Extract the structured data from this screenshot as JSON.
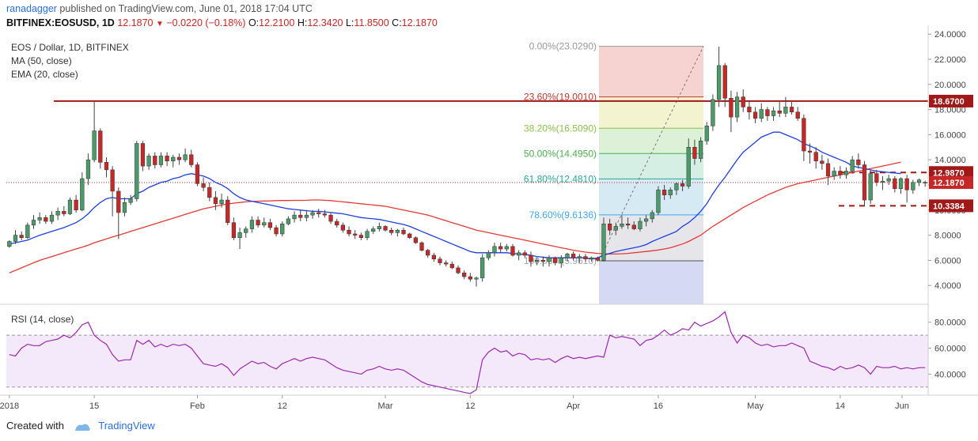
{
  "header": {
    "user": "ranadagger",
    "line1_rest": " published on TradingView.com, June 01, 2018 17:04 UTC",
    "symbol": "BITFINEX:EOSUSD, 1D",
    "last": "12.1870",
    "change_arrow": "▼",
    "change": "−0.0220 (−0.18%)",
    "o_label": "O:",
    "o": "12.2100",
    "h_label": "H:",
    "h": "12.3420",
    "l_label": "L:",
    "l": "11.8500",
    "c_label": "C:",
    "c": "12.1870"
  },
  "legend": {
    "title": "EOS / Dollar, 1D, BITFINEX",
    "ma": "MA (50, close)",
    "ema": "EMA (20, close)",
    "rsi": "RSI (14, close)"
  },
  "footer": {
    "created_with": "Created with",
    "brand": "TradingView"
  },
  "colors": {
    "up": "#4c9a6a",
    "down": "#c62828",
    "ma": "#e53935",
    "ema": "#1e3fe0",
    "rsi": "#9c27b0",
    "rsi_band": "#f3e9fa",
    "hline": "#a01818",
    "axis_text": "#444"
  },
  "chart_data": {
    "type": "candlestick",
    "x_tick_labels": [
      "2018",
      "15",
      "Feb",
      "12",
      "Mar",
      "12",
      "Apr",
      "16",
      "May",
      "14",
      "Jun"
    ],
    "y_tick_labels": [
      "24.0000",
      "22.0000",
      "20.0000",
      "18.0000",
      "16.0000",
      "14.0000",
      "12.0000",
      "10.0000",
      "8.0000",
      "6.0000",
      "4.0000"
    ],
    "y_range": [
      2.5,
      24.2
    ],
    "ohlc": [
      [
        7.1,
        7.6,
        7.0,
        7.5
      ],
      [
        7.5,
        8.4,
        7.3,
        8.0
      ],
      [
        8.0,
        8.3,
        7.6,
        7.8
      ],
      [
        7.8,
        9.0,
        7.7,
        8.8
      ],
      [
        8.8,
        9.6,
        8.5,
        9.2
      ],
      [
        9.2,
        9.8,
        8.9,
        9.4
      ],
      [
        9.4,
        9.6,
        8.9,
        9.1
      ],
      [
        9.1,
        9.9,
        8.9,
        9.6
      ],
      [
        9.6,
        10.2,
        9.2,
        9.9
      ],
      [
        9.9,
        10.3,
        9.5,
        9.7
      ],
      [
        9.7,
        11.0,
        9.6,
        10.8
      ],
      [
        10.8,
        11.2,
        9.8,
        10.0
      ],
      [
        10.0,
        13.0,
        9.9,
        12.5
      ],
      [
        12.5,
        14.5,
        12.0,
        14.0
      ],
      [
        14.0,
        18.6,
        13.8,
        16.3
      ],
      [
        16.3,
        16.5,
        13.3,
        13.8
      ],
      [
        13.8,
        14.2,
        12.6,
        13.2
      ],
      [
        13.2,
        13.5,
        9.5,
        11.5
      ],
      [
        11.5,
        11.8,
        7.7,
        9.8
      ],
      [
        9.8,
        11.0,
        9.5,
        10.6
      ],
      [
        10.6,
        11.2,
        10.4,
        10.9
      ],
      [
        10.9,
        15.5,
        10.7,
        15.3
      ],
      [
        15.3,
        15.5,
        13.1,
        13.5
      ],
      [
        13.5,
        14.5,
        13.2,
        14.3
      ],
      [
        14.3,
        14.6,
        13.3,
        13.6
      ],
      [
        13.6,
        14.6,
        13.4,
        14.3
      ],
      [
        14.3,
        14.6,
        13.5,
        13.9
      ],
      [
        13.9,
        14.4,
        13.4,
        14.2
      ],
      [
        14.2,
        14.5,
        13.6,
        14.0
      ],
      [
        14.0,
        14.9,
        13.8,
        14.4
      ],
      [
        14.4,
        14.8,
        13.4,
        13.6
      ],
      [
        13.6,
        13.8,
        11.9,
        12.1
      ],
      [
        12.1,
        12.6,
        11.5,
        11.8
      ],
      [
        11.8,
        12.2,
        10.7,
        11.0
      ],
      [
        11.0,
        11.5,
        10.0,
        10.5
      ],
      [
        10.5,
        11.3,
        10.2,
        10.8
      ],
      [
        10.8,
        11.1,
        8.8,
        9.0
      ],
      [
        9.0,
        9.4,
        7.6,
        7.8
      ],
      [
        7.8,
        8.6,
        6.9,
        8.2
      ],
      [
        8.2,
        8.7,
        7.8,
        8.5
      ],
      [
        8.5,
        9.5,
        8.2,
        9.2
      ],
      [
        9.2,
        9.5,
        8.6,
        8.8
      ],
      [
        8.8,
        9.4,
        8.6,
        9.0
      ],
      [
        9.0,
        9.3,
        8.4,
        8.6
      ],
      [
        8.6,
        8.8,
        7.9,
        8.1
      ],
      [
        8.1,
        9.1,
        7.9,
        8.9
      ],
      [
        8.9,
        9.5,
        8.8,
        9.3
      ],
      [
        9.3,
        9.9,
        9.0,
        9.6
      ],
      [
        9.6,
        10.0,
        9.1,
        9.4
      ],
      [
        9.4,
        10.0,
        9.1,
        9.6
      ],
      [
        9.6,
        10.0,
        9.3,
        9.8
      ],
      [
        9.8,
        10.1,
        9.4,
        9.7
      ],
      [
        9.7,
        10.0,
        9.4,
        9.6
      ],
      [
        9.6,
        9.8,
        8.9,
        9.1
      ],
      [
        9.1,
        9.3,
        8.6,
        8.8
      ],
      [
        8.8,
        9.0,
        8.2,
        8.4
      ],
      [
        8.4,
        8.7,
        7.9,
        8.1
      ],
      [
        8.1,
        8.4,
        7.7,
        8.0
      ],
      [
        8.0,
        8.2,
        7.6,
        7.8
      ],
      [
        7.8,
        8.5,
        7.6,
        8.3
      ],
      [
        8.3,
        8.7,
        8.1,
        8.5
      ],
      [
        8.5,
        9.0,
        8.3,
        8.7
      ],
      [
        8.7,
        8.8,
        8.3,
        8.4
      ],
      [
        8.4,
        8.6,
        8.0,
        8.2
      ],
      [
        8.2,
        8.5,
        7.9,
        8.4
      ],
      [
        8.4,
        8.6,
        8.0,
        8.1
      ],
      [
        8.1,
        8.2,
        7.7,
        7.8
      ],
      [
        7.8,
        7.9,
        7.3,
        7.4
      ],
      [
        7.4,
        7.5,
        6.7,
        6.8
      ],
      [
        6.8,
        6.9,
        6.2,
        6.4
      ],
      [
        6.4,
        6.6,
        5.9,
        6.1
      ],
      [
        6.1,
        6.3,
        5.6,
        5.8
      ],
      [
        5.8,
        6.0,
        5.5,
        5.7
      ],
      [
        5.7,
        5.9,
        5.3,
        5.4
      ],
      [
        5.4,
        5.6,
        4.9,
        5.0
      ],
      [
        5.0,
        5.2,
        4.5,
        4.7
      ],
      [
        4.7,
        5.0,
        4.3,
        4.5
      ],
      [
        4.5,
        4.7,
        3.9,
        4.6
      ],
      [
        4.6,
        6.5,
        4.3,
        6.2
      ],
      [
        6.2,
        6.8,
        6.0,
        6.6
      ],
      [
        6.6,
        7.4,
        6.3,
        7.1
      ],
      [
        7.1,
        7.4,
        6.6,
        6.9
      ],
      [
        6.9,
        7.3,
        6.7,
        7.1
      ],
      [
        7.1,
        7.3,
        6.3,
        6.4
      ],
      [
        6.4,
        6.8,
        6.0,
        6.6
      ],
      [
        6.6,
        6.8,
        6.2,
        6.4
      ],
      [
        6.4,
        6.7,
        5.5,
        5.9
      ],
      [
        5.9,
        6.2,
        5.6,
        6.0
      ],
      [
        6.0,
        6.3,
        5.5,
        5.9
      ],
      [
        5.9,
        6.4,
        5.5,
        6.2
      ],
      [
        6.2,
        6.3,
        5.6,
        5.8
      ],
      [
        5.8,
        6.4,
        5.4,
        6.2
      ],
      [
        6.2,
        6.6,
        5.9,
        6.5
      ],
      [
        6.5,
        6.7,
        6.0,
        6.2
      ],
      [
        6.2,
        6.5,
        5.8,
        6.3
      ],
      [
        6.3,
        6.5,
        5.9,
        6.1
      ],
      [
        6.1,
        6.3,
        5.9,
        6.2
      ],
      [
        6.2,
        6.3,
        5.9,
        6.0
      ],
      [
        6.0,
        9.4,
        5.9,
        8.9
      ],
      [
        8.9,
        9.3,
        8.0,
        8.4
      ],
      [
        8.4,
        9.0,
        8.0,
        8.7
      ],
      [
        8.7,
        9.6,
        8.5,
        8.9
      ],
      [
        8.9,
        9.4,
        8.5,
        8.8
      ],
      [
        8.8,
        9.1,
        8.4,
        8.5
      ],
      [
        8.5,
        9.4,
        8.3,
        9.1
      ],
      [
        9.1,
        9.6,
        8.7,
        9.3
      ],
      [
        9.3,
        10.0,
        9.0,
        9.8
      ],
      [
        9.8,
        11.9,
        9.6,
        11.6
      ],
      [
        11.6,
        12.0,
        10.8,
        11.2
      ],
      [
        11.2,
        11.8,
        10.9,
        11.6
      ],
      [
        11.6,
        12.2,
        11.2,
        12.1
      ],
      [
        12.1,
        12.4,
        11.5,
        11.9
      ],
      [
        11.9,
        15.7,
        11.7,
        15.0
      ],
      [
        15.0,
        15.6,
        13.6,
        14.1
      ],
      [
        14.1,
        15.8,
        13.8,
        15.5
      ],
      [
        15.5,
        17.0,
        15.2,
        16.7
      ],
      [
        16.7,
        19.2,
        16.3,
        18.8
      ],
      [
        18.8,
        23.0,
        18.2,
        21.5
      ],
      [
        21.5,
        21.7,
        18.2,
        18.9
      ],
      [
        18.9,
        19.5,
        16.2,
        17.4
      ],
      [
        17.4,
        19.4,
        17.0,
        19.0
      ],
      [
        19.0,
        19.6,
        17.8,
        18.2
      ],
      [
        18.2,
        18.7,
        17.2,
        17.8
      ],
      [
        17.8,
        18.2,
        16.9,
        17.3
      ],
      [
        17.3,
        18.5,
        17.0,
        18.0
      ],
      [
        18.0,
        18.2,
        17.1,
        17.5
      ],
      [
        17.5,
        18.2,
        17.1,
        17.9
      ],
      [
        17.9,
        18.6,
        17.4,
        17.7
      ],
      [
        17.7,
        19.0,
        17.4,
        18.2
      ],
      [
        18.2,
        18.6,
        17.6,
        17.8
      ],
      [
        17.8,
        18.2,
        17.1,
        17.3
      ],
      [
        17.3,
        17.6,
        13.9,
        14.7
      ],
      [
        14.7,
        15.3,
        13.7,
        14.6
      ],
      [
        14.6,
        15.0,
        13.3,
        13.9
      ],
      [
        13.9,
        14.4,
        13.2,
        13.7
      ],
      [
        13.7,
        14.1,
        12.0,
        12.7
      ],
      [
        12.7,
        13.4,
        12.4,
        13.1
      ],
      [
        13.1,
        13.5,
        12.5,
        12.8
      ],
      [
        12.8,
        13.4,
        12.5,
        13.1
      ],
      [
        13.1,
        14.3,
        12.9,
        14.0
      ],
      [
        14.0,
        14.5,
        13.3,
        13.6
      ],
      [
        13.6,
        13.9,
        10.3,
        10.8
      ],
      [
        10.8,
        13.2,
        10.5,
        12.9
      ],
      [
        12.9,
        13.2,
        11.9,
        12.2
      ],
      [
        12.2,
        12.7,
        11.6,
        12.3
      ],
      [
        12.3,
        12.8,
        12.0,
        12.5
      ],
      [
        12.5,
        12.7,
        11.4,
        11.7
      ],
      [
        11.7,
        12.6,
        11.3,
        12.5
      ],
      [
        12.5,
        12.8,
        10.6,
        11.6
      ],
      [
        11.6,
        12.4,
        11.3,
        12.2
      ],
      [
        12.2,
        12.5,
        11.9,
        12.4
      ],
      [
        12.21,
        12.34,
        11.85,
        12.19
      ]
    ],
    "series": [
      {
        "name": "MA (50, close)",
        "values": [
          5.0,
          5.2,
          5.4,
          5.6,
          5.8,
          6.0,
          6.15,
          6.3,
          6.45,
          6.6,
          6.75,
          6.9,
          7.05,
          7.2,
          7.4,
          7.55,
          7.7,
          7.85,
          8.0,
          8.15,
          8.3,
          8.45,
          8.6,
          8.75,
          8.9,
          9.05,
          9.2,
          9.35,
          9.5,
          9.65,
          9.8,
          9.95,
          10.1,
          10.2,
          10.3,
          10.4,
          10.48,
          10.55,
          10.6,
          10.65,
          10.68,
          10.7,
          10.72,
          10.73,
          10.75,
          10.76,
          10.76,
          10.77,
          10.77,
          10.78,
          10.8,
          10.8,
          10.78,
          10.75,
          10.7,
          10.65,
          10.6,
          10.55,
          10.5,
          10.45,
          10.4,
          10.35,
          10.3,
          10.2,
          10.1,
          10.0,
          9.9,
          9.8,
          9.7,
          9.6,
          9.45,
          9.3,
          9.15,
          9.0,
          8.85,
          8.7,
          8.55,
          8.4,
          8.3,
          8.2,
          8.1,
          8.0,
          7.9,
          7.8,
          7.7,
          7.6,
          7.5,
          7.4,
          7.3,
          7.2,
          7.1,
          7.0,
          6.9,
          6.8,
          6.72,
          6.65,
          6.6,
          6.55,
          6.52,
          6.5,
          6.5,
          6.52,
          6.55,
          6.6,
          6.65,
          6.7,
          6.76,
          6.82,
          6.9,
          7.0,
          7.15,
          7.3,
          7.5,
          7.75,
          8.0,
          8.35,
          8.7,
          9.0,
          9.3,
          9.6,
          9.9,
          10.2,
          10.45,
          10.7,
          10.95,
          11.2,
          11.4,
          11.6,
          11.8,
          11.95,
          12.1,
          12.2,
          12.3,
          12.4,
          12.5,
          12.6,
          12.7,
          12.8,
          12.9,
          13.0,
          13.1,
          13.2,
          13.3,
          13.4,
          13.5,
          13.6,
          13.7,
          13.8
        ]
      },
      {
        "name": "EMA (20, close)",
        "values": [
          7.3,
          7.4,
          7.5,
          7.6,
          7.8,
          8.0,
          8.15,
          8.3,
          8.45,
          8.6,
          8.8,
          9.0,
          9.3,
          9.7,
          10.2,
          10.6,
          10.9,
          11.0,
          10.9,
          10.9,
          10.9,
          11.3,
          11.5,
          11.8,
          12.0,
          12.2,
          12.3,
          12.5,
          12.6,
          12.8,
          12.9,
          12.8,
          12.7,
          12.5,
          12.2,
          12.0,
          11.7,
          11.3,
          11.0,
          10.8,
          10.7,
          10.6,
          10.5,
          10.4,
          10.3,
          10.2,
          10.1,
          10.05,
          10.0,
          9.95,
          9.9,
          9.9,
          9.85,
          9.8,
          9.75,
          9.7,
          9.6,
          9.5,
          9.4,
          9.35,
          9.3,
          9.25,
          9.15,
          9.05,
          8.95,
          8.85,
          8.7,
          8.5,
          8.3,
          8.1,
          7.9,
          7.7,
          7.5,
          7.3,
          7.1,
          6.9,
          6.7,
          6.6,
          6.6,
          6.6,
          6.6,
          6.6,
          6.6,
          6.55,
          6.5,
          6.45,
          6.4,
          6.3,
          6.25,
          6.2,
          6.2,
          6.2,
          6.2,
          6.2,
          6.2,
          6.2,
          6.1,
          6.2,
          6.4,
          6.55,
          6.7,
          6.8,
          6.9,
          7.0,
          7.1,
          7.25,
          7.5,
          7.7,
          7.9,
          8.1,
          8.3,
          8.7,
          9.0,
          9.4,
          9.9,
          10.5,
          11.3,
          12.0,
          12.6,
          13.3,
          14.0,
          14.6,
          15.0,
          15.4,
          15.8,
          16.0,
          16.2,
          16.2,
          16.0,
          15.8,
          15.6,
          15.3,
          15.1,
          14.9,
          14.6,
          14.4,
          14.2,
          14.0,
          13.8,
          13.5,
          13.4,
          13.3,
          13.2,
          13.1,
          13.05,
          13.0,
          12.95,
          12.9
        ]
      }
    ],
    "rsi": {
      "name": "RSI (14, close)",
      "y_tick_labels": [
        "80.0000",
        "60.0000",
        "40.0000"
      ],
      "y_range": [
        25,
        92
      ],
      "bands": [
        30,
        70
      ],
      "values": [
        55,
        54,
        60,
        63,
        62,
        62,
        65,
        66,
        67,
        70,
        68,
        72,
        78,
        80,
        70,
        66,
        63,
        55,
        50,
        51,
        51,
        66,
        63,
        66,
        61,
        63,
        61,
        63,
        62,
        63,
        60,
        54,
        48,
        47,
        46,
        48,
        45,
        39,
        44,
        47,
        50,
        48,
        49,
        46,
        44,
        48,
        50,
        52,
        50,
        52,
        53,
        52,
        51,
        48,
        45,
        43,
        42,
        41,
        40,
        43,
        44,
        46,
        44,
        43,
        44,
        43,
        40,
        37,
        34,
        32,
        31,
        30,
        29,
        28,
        27,
        26,
        25,
        28,
        51,
        57,
        60,
        57,
        58,
        54,
        56,
        55,
        51,
        52,
        51,
        52,
        49,
        52,
        54,
        52,
        53,
        52,
        53,
        54,
        53,
        70,
        68,
        69,
        68,
        67,
        62,
        66,
        67,
        70,
        74,
        70,
        72,
        75,
        74,
        80,
        77,
        79,
        81,
        84,
        88,
        72,
        64,
        70,
        68,
        64,
        62,
        63,
        61,
        62,
        62,
        64,
        62,
        60,
        50,
        48,
        46,
        45,
        43,
        46,
        44,
        45,
        47,
        45,
        40,
        46,
        45,
        45,
        46,
        44,
        45,
        44,
        45,
        45
      ]
    },
    "hlines": [
      {
        "label": "18.6700",
        "y": 18.67
      },
      {
        "label": "12.9870",
        "y": 12.987,
        "dashed": true
      },
      {
        "label": "10.3384",
        "y": 10.3384,
        "dashed": true
      }
    ],
    "current_price": {
      "label": "12.1870",
      "y": 12.187
    },
    "fibonacci": [
      {
        "label": "0.00%(23.0290)",
        "y": 23.029
      },
      {
        "label": "23.60%(19.0010)",
        "y": 19.001
      },
      {
        "label": "38.20%(16.5090)",
        "y": 16.509
      },
      {
        "label": "50.00%(14.4950)",
        "y": 14.495
      },
      {
        "label": "61.80%(12.4810)",
        "y": 12.481
      },
      {
        "label": "78.60%(9.6136)",
        "y": 9.6136
      },
      {
        "label": "100.00%(5.9610)",
        "y": 5.961
      }
    ]
  }
}
